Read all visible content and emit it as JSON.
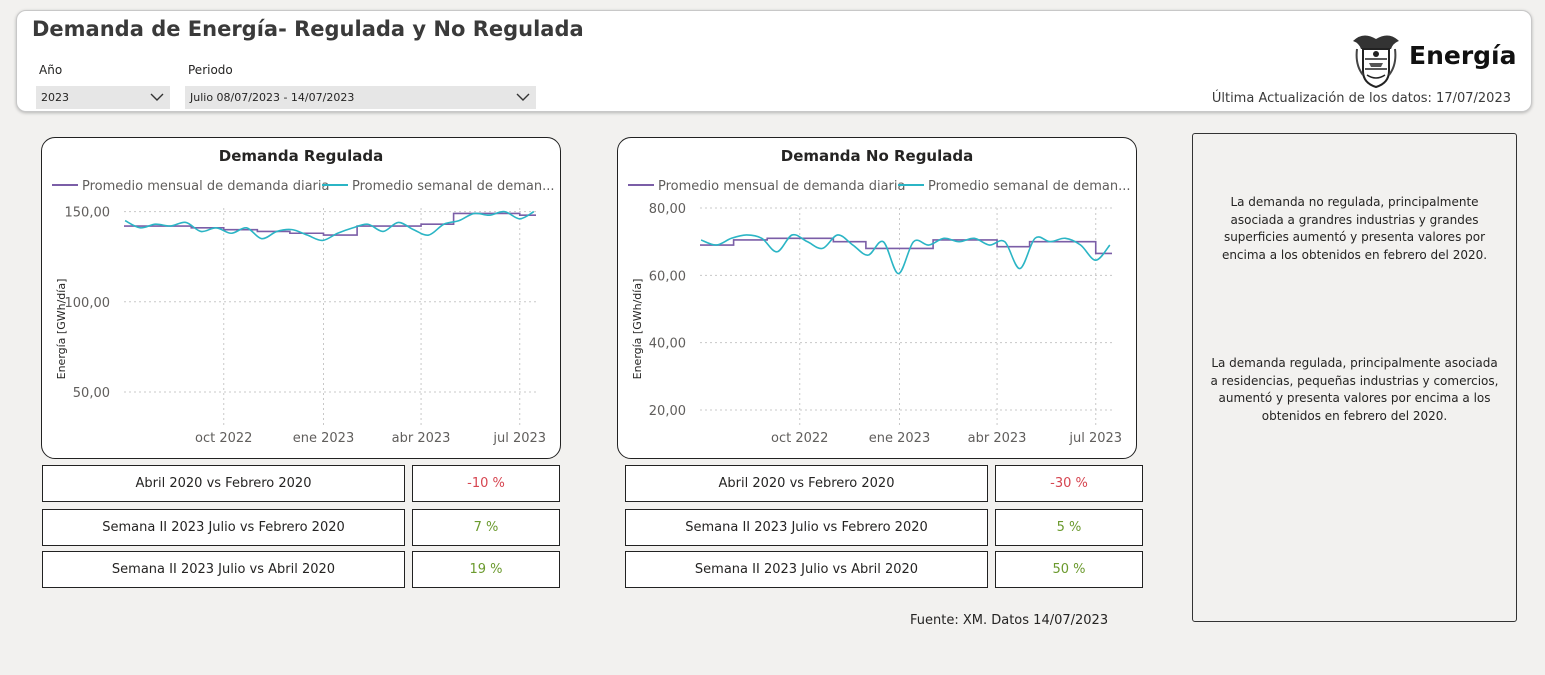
{
  "header": {
    "title": "Demanda de Energía- Regulada y No Regulada",
    "filters": {
      "year_label": "Año",
      "year_value": "2023",
      "period_label": "Periodo",
      "period_value": "Julio 08/07/2023 - 14/07/2023"
    },
    "brand": "Energía",
    "last_update": "Última Actualización de los datos: 17/07/2023"
  },
  "colors": {
    "monthly": "#7b5ea7",
    "weekly": "#2bb5c5",
    "negative": "#d64550",
    "positive": "#6b9a2e"
  },
  "icons": {
    "dropdown": "chevron-down-icon",
    "logo": "coat-of-arms-icon"
  },
  "chart_data": [
    {
      "type": "line",
      "title": "Demanda Regulada",
      "ylabel": "Energía [GWh/día]",
      "legend": [
        "Promedio mensual de demanda diaria",
        "Promedio semanal de deman..."
      ],
      "legend_placement": "top",
      "xticks": [
        "oct 2022",
        "ene 2023",
        "abr 2023",
        "jul 2023"
      ],
      "yticks": [
        "50,00",
        "100,00",
        "150,00"
      ],
      "ylim": [
        40,
        152
      ],
      "grid": true,
      "series": [
        {
          "name": "Promedio mensual de demanda diaria",
          "x": [
            "2022-07",
            "2022-08",
            "2022-09",
            "2022-10",
            "2022-11",
            "2022-12",
            "2023-01",
            "2023-02",
            "2023-03",
            "2023-04",
            "2023-05",
            "2023-06",
            "2023-07"
          ],
          "values": [
            142,
            142,
            141,
            140,
            139,
            138,
            137,
            142,
            142,
            143,
            149,
            149,
            148
          ]
        },
        {
          "name": "Promedio semanal de demanda",
          "x": [
            "2022-07-02",
            "2022-07-16",
            "2022-07-30",
            "2022-08-13",
            "2022-08-27",
            "2022-09-10",
            "2022-09-24",
            "2022-10-08",
            "2022-10-22",
            "2022-11-05",
            "2022-11-19",
            "2022-12-03",
            "2022-12-17",
            "2022-12-31",
            "2023-01-14",
            "2023-01-28",
            "2023-02-11",
            "2023-02-25",
            "2023-03-11",
            "2023-03-25",
            "2023-04-08",
            "2023-04-22",
            "2023-05-06",
            "2023-05-20",
            "2023-06-03",
            "2023-06-17",
            "2023-07-01",
            "2023-07-14"
          ],
          "values": [
            145,
            141,
            143,
            142,
            144,
            139,
            141,
            138,
            141,
            135,
            139,
            140,
            137,
            134,
            138,
            141,
            143,
            139,
            144,
            140,
            137,
            143,
            145,
            149,
            148,
            150,
            146,
            150
          ]
        }
      ]
    },
    {
      "type": "line",
      "title": "Demanda No Regulada",
      "ylabel": "Energía [GWh/día]",
      "legend": [
        "Promedio mensual de demanda diaria",
        "Promedio semanal de deman..."
      ],
      "legend_placement": "top",
      "xticks": [
        "oct 2022",
        "ene 2023",
        "abr 2023",
        "jul 2023"
      ],
      "yticks": [
        "20,00",
        "40,00",
        "60,00",
        "80,00"
      ],
      "ylim": [
        20,
        80
      ],
      "grid": true,
      "series": [
        {
          "name": "Promedio mensual de demanda diaria",
          "x": [
            "2022-07",
            "2022-08",
            "2022-09",
            "2022-10",
            "2022-11",
            "2022-12",
            "2023-01",
            "2023-02",
            "2023-03",
            "2023-04",
            "2023-05",
            "2023-06",
            "2023-07"
          ],
          "values": [
            69,
            70.5,
            71,
            71,
            70,
            68,
            68,
            70.5,
            70.5,
            68.5,
            70,
            70,
            66.5
          ]
        },
        {
          "name": "Promedio semanal de demanda",
          "x": [
            "2022-07-02",
            "2022-07-16",
            "2022-07-30",
            "2022-08-13",
            "2022-08-27",
            "2022-09-10",
            "2022-09-24",
            "2022-10-08",
            "2022-10-22",
            "2022-11-05",
            "2022-11-19",
            "2022-12-03",
            "2022-12-17",
            "2022-12-31",
            "2023-01-14",
            "2023-01-28",
            "2023-02-11",
            "2023-02-25",
            "2023-03-11",
            "2023-03-25",
            "2023-04-08",
            "2023-04-22",
            "2023-05-06",
            "2023-05-20",
            "2023-06-03",
            "2023-06-17",
            "2023-07-01",
            "2023-07-14"
          ],
          "values": [
            70.5,
            69,
            71,
            72,
            71,
            67,
            72,
            70,
            68,
            72,
            69,
            66,
            70,
            60.5,
            70,
            69,
            71,
            70,
            71,
            69,
            70,
            62,
            71,
            70,
            71,
            69,
            64.5,
            69
          ]
        }
      ]
    }
  ],
  "regulada_kpis": [
    {
      "label": "Abril 2020 vs Febrero 2020",
      "value": "-10 %",
      "sign": "negative"
    },
    {
      "label": "Semana II 2023 Julio vs Febrero 2020",
      "value": "7 %",
      "sign": "positive"
    },
    {
      "label": "Semana II 2023 Julio vs Abril 2020",
      "value": "19 %",
      "sign": "positive"
    }
  ],
  "no_regulada_kpis": [
    {
      "label": "Abril 2020 vs Febrero 2020",
      "value": "-30 %",
      "sign": "negative"
    },
    {
      "label": "Semana II 2023 Julio vs Febrero 2020",
      "value": "5 %",
      "sign": "positive"
    },
    {
      "label": "Semana II 2023 Julio vs Abril 2020",
      "value": "50 %",
      "sign": "positive"
    }
  ],
  "source": "Fuente: XM. Datos 14/07/2023",
  "notes": [
    "La demanda no regulada, principalmente asociada a grandres industrias y grandes superficies aumentó  y presenta valores  por encima a los obtenidos en febrero del 2020.",
    "La demanda regulada, principalmente asociada a residencias, pequeñas industrias y comercios, aumentó  y presenta valores  por encima a los obtenidos en febrero del 2020."
  ]
}
